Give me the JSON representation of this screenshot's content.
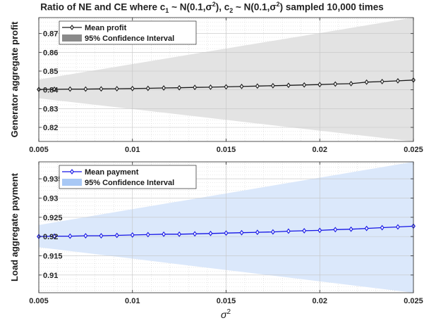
{
  "title": {
    "text1": "Ratio of NE and CE where c",
    "sub1": "1",
    "text2": " ~ N(0.1,σ",
    "sup1": "2",
    "text3": "), c",
    "sub2": "2",
    "text4": " ~ N(0.1,σ",
    "sup2": "2",
    "text5": ") sampled 10,000 times"
  },
  "xlabel": "σ",
  "xlabel_sup": "2",
  "chart_data": [
    {
      "type": "line",
      "ylabel": "Generator aggregate profit",
      "xlim": [
        0.005,
        0.025
      ],
      "ylim": [
        0.8125,
        0.8785
      ],
      "xticks": [
        0.005,
        0.01,
        0.015,
        0.02,
        0.025
      ],
      "xtick_labels": [
        "0.005",
        "0.01",
        "0.015",
        "0.02",
        "0.025"
      ],
      "yticks": [
        0.82,
        0.83,
        0.84,
        0.85,
        0.86,
        0.87
      ],
      "ytick_labels": [
        "0.82",
        "0.83",
        "0.84",
        "0.85",
        "0.86",
        "0.87"
      ],
      "grid": true,
      "legend_position": "top-left",
      "series": [
        {
          "name": "Mean profit",
          "color": "#1a1a1a",
          "marker": "diamond",
          "x": [
            0.005,
            0.00583,
            0.00667,
            0.0075,
            0.00833,
            0.00917,
            0.01,
            0.01083,
            0.01167,
            0.0125,
            0.01333,
            0.01417,
            0.015,
            0.01583,
            0.01667,
            0.0175,
            0.01833,
            0.01917,
            0.02,
            0.02083,
            0.02167,
            0.0225,
            0.02333,
            0.02417,
            0.025
          ],
          "y": [
            0.8402,
            0.8403,
            0.8404,
            0.8404,
            0.8405,
            0.8406,
            0.8407,
            0.8408,
            0.841,
            0.8411,
            0.8413,
            0.8414,
            0.8416,
            0.8418,
            0.842,
            0.8422,
            0.8424,
            0.8426,
            0.8428,
            0.8431,
            0.8433,
            0.8441,
            0.8444,
            0.8448,
            0.8452
          ]
        },
        {
          "name": "95% Confidence Interval",
          "color": "#e3e3e3",
          "legend_color": "#8a8a8a",
          "x": [
            0.005,
            0.025
          ],
          "upper": [
            0.8455,
            0.8785
          ],
          "lower": [
            0.8355,
            0.8125
          ]
        }
      ]
    },
    {
      "type": "line",
      "ylabel": "Load aggregate payment",
      "xlim": [
        0.005,
        0.025
      ],
      "ylim": [
        0.9054,
        0.9394
      ],
      "xticks": [
        0.005,
        0.01,
        0.015,
        0.02,
        0.025
      ],
      "xtick_labels": [
        "0.005",
        "0.01",
        "0.015",
        "0.02",
        "0.025"
      ],
      "yticks": [
        0.91,
        0.915,
        0.92,
        0.925,
        0.93,
        0.935
      ],
      "ytick_labels": [
        "0.91",
        "0.915",
        "0.92",
        "0.925",
        "0.93",
        "0.935"
      ],
      "grid": true,
      "legend_position": "top-left",
      "series": [
        {
          "name": "Mean payment",
          "color": "#1414e6",
          "marker": "diamond",
          "x": [
            0.005,
            0.00583,
            0.00667,
            0.0075,
            0.00833,
            0.00917,
            0.01,
            0.01083,
            0.01167,
            0.0125,
            0.01333,
            0.01417,
            0.015,
            0.01583,
            0.01667,
            0.0175,
            0.01833,
            0.01917,
            0.02,
            0.02083,
            0.02167,
            0.0225,
            0.02333,
            0.02417,
            0.025
          ],
          "y": [
            0.92,
            0.9201,
            0.9201,
            0.9202,
            0.9202,
            0.9203,
            0.9204,
            0.9205,
            0.9206,
            0.9206,
            0.9207,
            0.9208,
            0.9209,
            0.921,
            0.9211,
            0.9212,
            0.9214,
            0.9215,
            0.9216,
            0.9218,
            0.9219,
            0.9221,
            0.9223,
            0.9225,
            0.9227
          ]
        },
        {
          "name": "95% Confidence Interval",
          "color": "#dbe8fb",
          "legend_color": "#a8c8f5",
          "x": [
            0.005,
            0.025
          ],
          "upper": [
            0.923,
            0.9394
          ],
          "lower": [
            0.9172,
            0.9054
          ]
        }
      ]
    }
  ]
}
